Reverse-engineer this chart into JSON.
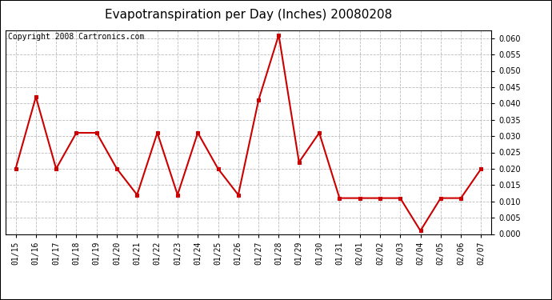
{
  "title": "Evapotranspiration per Day (Inches) 20080208",
  "copyright_text": "Copyright 2008 Cartronics.com",
  "dates": [
    "01/15",
    "01/16",
    "01/17",
    "01/18",
    "01/19",
    "01/20",
    "01/21",
    "01/22",
    "01/23",
    "01/24",
    "01/25",
    "01/26",
    "01/27",
    "01/28",
    "01/29",
    "01/30",
    "01/31",
    "02/01",
    "02/02",
    "02/03",
    "02/04",
    "02/05",
    "02/06",
    "02/07"
  ],
  "values": [
    0.02,
    0.042,
    0.02,
    0.031,
    0.031,
    0.02,
    0.012,
    0.031,
    0.012,
    0.031,
    0.02,
    0.012,
    0.041,
    0.061,
    0.022,
    0.031,
    0.011,
    0.011,
    0.011,
    0.011,
    0.001,
    0.011,
    0.011,
    0.02
  ],
  "ylim": [
    0.0,
    0.0625
  ],
  "yticks": [
    0.0,
    0.005,
    0.01,
    0.015,
    0.02,
    0.025,
    0.03,
    0.035,
    0.04,
    0.045,
    0.05,
    0.055,
    0.06
  ],
  "line_color": "#cc0000",
  "marker": "s",
  "marker_size": 3,
  "bg_color": "#ffffff",
  "plot_bg_color": "#ffffff",
  "grid_color": "#bbbbbb",
  "grid_style": "--",
  "title_fontsize": 11,
  "copyright_fontsize": 7,
  "tick_fontsize": 7,
  "ytick_fontsize": 7
}
